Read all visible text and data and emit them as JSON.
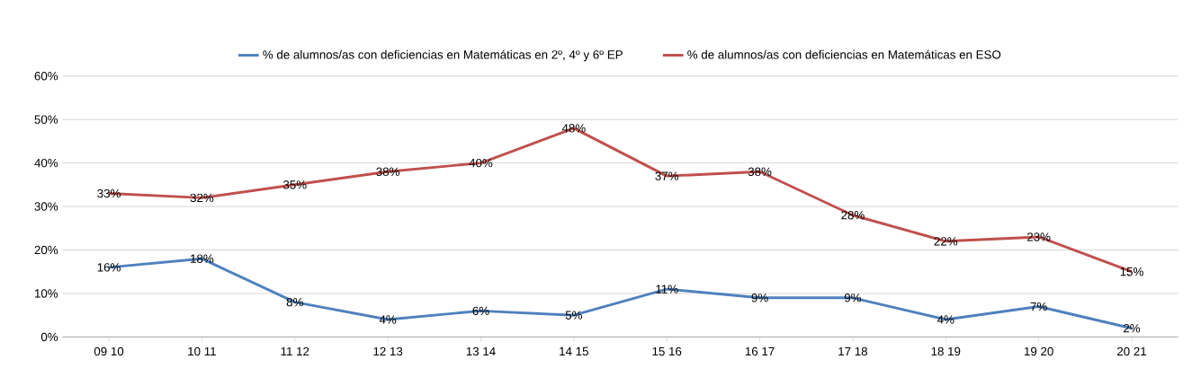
{
  "chart_data": {
    "type": "line",
    "categories": [
      "09 10",
      "10 11",
      "11 12",
      "12 13",
      "13 14",
      "14 15",
      "15 16",
      "16 17",
      "17 18",
      "18 19",
      "19 20",
      "20 21"
    ],
    "series": [
      {
        "name": "% de alumnos/as con deficiencias en  Matemáticas en 2º, 4º y 6º EP",
        "color": "#4f81bd",
        "values": [
          16,
          18,
          8,
          4,
          6,
          5,
          11,
          9,
          9,
          4,
          7,
          2
        ],
        "value_labels": [
          "16%",
          "18%",
          "8%",
          "4%",
          "6%",
          "5%",
          "11%",
          "9%",
          "9%",
          "4%",
          "7%",
          "2%"
        ]
      },
      {
        "name": "% de alumnos/as con deficiencias en  Matemáticas en ESO",
        "color": "#c0504d",
        "values": [
          33,
          32,
          35,
          38,
          40,
          48,
          37,
          38,
          28,
          22,
          23,
          15
        ],
        "value_labels": [
          "33%",
          "32%",
          "35%",
          "38%",
          "40%",
          "48%",
          "37%",
          "38%",
          "28%",
          "22%",
          "23%",
          "15%"
        ]
      }
    ],
    "ylim": [
      0,
      60
    ],
    "yticks": [
      {
        "value": 0,
        "label": "0%"
      },
      {
        "value": 10,
        "label": "10%"
      },
      {
        "value": 20,
        "label": "20%"
      },
      {
        "value": 30,
        "label": "30%"
      },
      {
        "value": 40,
        "label": "40%"
      },
      {
        "value": 50,
        "label": "50%"
      },
      {
        "value": 60,
        "label": "60%"
      }
    ],
    "grid": "y",
    "legend": "top",
    "marker": "none",
    "line_style": "solid"
  }
}
